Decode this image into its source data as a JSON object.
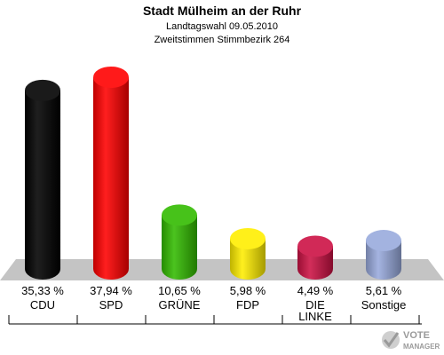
{
  "chart_data": {
    "type": "bar",
    "title": "Stadt Mülheim an der Ruhr",
    "subtitle1": "Landtagswahl 09.05.2010",
    "subtitle2": "Zweitstimmen Stimmbezirk 264",
    "categories": [
      "CDU",
      "SPD",
      "GRÜNE",
      "FDP",
      "DIE LINKE",
      "Sonstige"
    ],
    "category_lines": [
      [
        "CDU"
      ],
      [
        "SPD"
      ],
      [
        "GRÜNE"
      ],
      [
        "FDP"
      ],
      [
        "DIE",
        "LINKE"
      ],
      [
        "Sonstige"
      ]
    ],
    "values": [
      35.33,
      37.94,
      10.65,
      5.98,
      4.49,
      5.61
    ],
    "value_labels": [
      "35,33 %",
      "37,94 %",
      "10,65 %",
      "5,98 %",
      "4,49 %",
      "5,61 %"
    ],
    "colors": [
      "#000000",
      "#ff0000",
      "#33bb00",
      "#ffee00",
      "#cc1144",
      "#99aadd"
    ],
    "ylim": [
      0,
      40
    ],
    "grid": false,
    "legend": "none"
  },
  "branding": {
    "logo_line1": "VOTE",
    "logo_line2": "MANAGER"
  }
}
